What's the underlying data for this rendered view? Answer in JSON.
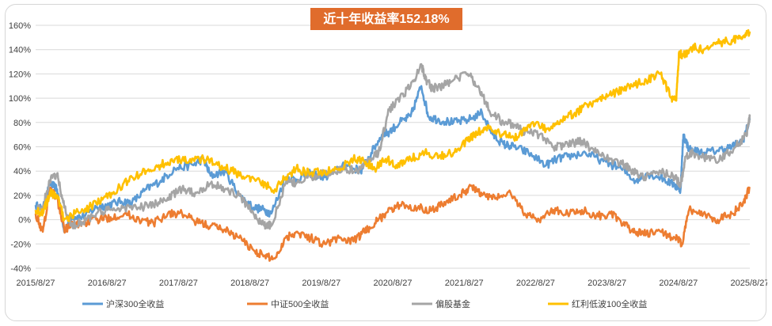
{
  "chart_data": {
    "type": "line",
    "title": "近十年收益率152.18%",
    "title_bg": "#e06c2c",
    "ylim": [
      -40,
      160
    ],
    "y_ticks": [
      -40,
      -20,
      0,
      20,
      40,
      60,
      80,
      100,
      120,
      140,
      160
    ],
    "y_tick_labels": [
      "-40%",
      "-20%",
      "0%",
      "20%",
      "40%",
      "60%",
      "80%",
      "100%",
      "120%",
      "140%",
      "160%"
    ],
    "x_ticks": [
      "2015/8/27",
      "2016/8/27",
      "2017/8/27",
      "2018/8/27",
      "2019/8/27",
      "2020/8/27",
      "2021/8/27",
      "2022/8/27",
      "2023/8/27",
      "2024/8/27",
      "2025/8/27"
    ],
    "xlim": [
      2015.65,
      2025.65
    ],
    "grid": "horizontal",
    "legend_position": "bottom",
    "series": [
      {
        "name": "沪深300全收益",
        "color": "#5b9bd5",
        "x": [
          2015.65,
          2015.75,
          2015.85,
          2015.95,
          2016.05,
          2016.15,
          2016.3,
          2016.5,
          2016.65,
          2016.85,
          2017.0,
          2017.2,
          2017.4,
          2017.6,
          2017.85,
          2018.0,
          2018.1,
          2018.3,
          2018.5,
          2018.7,
          2018.85,
          2018.95,
          2019.15,
          2019.3,
          2019.5,
          2019.7,
          2019.9,
          2020.0,
          2020.2,
          2020.35,
          2020.5,
          2020.6,
          2020.75,
          2020.9,
          2021.05,
          2021.15,
          2021.3,
          2021.5,
          2021.7,
          2021.9,
          2022.05,
          2022.2,
          2022.35,
          2022.55,
          2022.8,
          2022.95,
          2023.1,
          2023.35,
          2023.6,
          2023.85,
          2024.05,
          2024.2,
          2024.4,
          2024.6,
          2024.68,
          2024.72,
          2024.8,
          2025.0,
          2025.2,
          2025.4,
          2025.55,
          2025.65
        ],
        "y": [
          12,
          8,
          30,
          25,
          -10,
          3,
          2,
          10,
          12,
          15,
          14,
          25,
          32,
          42,
          45,
          50,
          36,
          40,
          20,
          10,
          8,
          5,
          35,
          33,
          38,
          35,
          42,
          45,
          40,
          55,
          70,
          72,
          80,
          85,
          110,
          85,
          82,
          80,
          82,
          88,
          70,
          62,
          60,
          55,
          45,
          50,
          52,
          55,
          48,
          42,
          32,
          38,
          35,
          28,
          25,
          70,
          58,
          55,
          57,
          60,
          65,
          82
        ]
      },
      {
        "name": "中证500全收益",
        "color": "#ed7d31",
        "x": [
          2015.65,
          2015.75,
          2015.85,
          2015.95,
          2016.05,
          2016.15,
          2016.3,
          2016.5,
          2016.7,
          2016.9,
          2017.1,
          2017.3,
          2017.5,
          2017.7,
          2017.9,
          2018.1,
          2018.3,
          2018.5,
          2018.7,
          2018.85,
          2019.0,
          2019.15,
          2019.3,
          2019.5,
          2019.7,
          2019.9,
          2020.1,
          2020.25,
          2020.4,
          2020.55,
          2020.75,
          2021.0,
          2021.2,
          2021.4,
          2021.6,
          2021.75,
          2021.9,
          2022.1,
          2022.3,
          2022.5,
          2022.7,
          2022.9,
          2023.1,
          2023.3,
          2023.5,
          2023.7,
          2023.9,
          2024.05,
          2024.2,
          2024.4,
          2024.6,
          2024.7,
          2024.8,
          2025.0,
          2025.2,
          2025.4,
          2025.55,
          2025.65
        ],
        "y": [
          5,
          -10,
          25,
          18,
          -8,
          -5,
          -3,
          0,
          2,
          5,
          0,
          -3,
          5,
          5,
          -2,
          -5,
          -8,
          -15,
          -25,
          -30,
          -32,
          -15,
          -10,
          -15,
          -20,
          -15,
          -18,
          -10,
          -3,
          5,
          12,
          10,
          8,
          15,
          20,
          28,
          20,
          18,
          22,
          5,
          0,
          8,
          5,
          8,
          3,
          5,
          -5,
          -10,
          -12,
          -10,
          -15,
          -20,
          8,
          5,
          0,
          5,
          12,
          27
        ]
      },
      {
        "name": "偏股基金",
        "color": "#a5a5a5",
        "x": [
          2015.65,
          2015.75,
          2015.85,
          2015.95,
          2016.05,
          2016.15,
          2016.3,
          2016.5,
          2016.7,
          2016.9,
          2017.1,
          2017.3,
          2017.5,
          2017.7,
          2017.9,
          2018.1,
          2018.3,
          2018.5,
          2018.7,
          2018.85,
          2018.95,
          2019.15,
          2019.3,
          2019.5,
          2019.7,
          2019.9,
          2020.0,
          2020.15,
          2020.3,
          2020.45,
          2020.6,
          2020.75,
          2020.9,
          2021.05,
          2021.12,
          2021.2,
          2021.35,
          2021.5,
          2021.7,
          2021.85,
          2022.0,
          2022.2,
          2022.35,
          2022.5,
          2022.7,
          2022.9,
          2023.1,
          2023.3,
          2023.5,
          2023.7,
          2023.9,
          2024.05,
          2024.2,
          2024.4,
          2024.6,
          2024.68,
          2024.75,
          2024.85,
          2025.05,
          2025.25,
          2025.45,
          2025.6,
          2025.65
        ],
        "y": [
          8,
          10,
          32,
          38,
          10,
          -5,
          -2,
          5,
          8,
          10,
          10,
          12,
          18,
          25,
          22,
          30,
          25,
          20,
          5,
          -5,
          -5,
          30,
          30,
          35,
          38,
          40,
          42,
          40,
          48,
          55,
          90,
          100,
          110,
          128,
          115,
          108,
          110,
          115,
          120,
          110,
          90,
          80,
          78,
          72,
          70,
          60,
          62,
          65,
          55,
          50,
          45,
          38,
          35,
          40,
          35,
          28,
          52,
          55,
          50,
          50,
          60,
          70,
          85
        ]
      },
      {
        "name": "红利低波100全收益",
        "color": "#ffc000",
        "x": [
          2015.65,
          2015.75,
          2015.85,
          2015.95,
          2016.05,
          2016.2,
          2016.4,
          2016.6,
          2016.8,
          2017.0,
          2017.2,
          2017.4,
          2017.6,
          2017.8,
          2018.0,
          2018.2,
          2018.4,
          2018.6,
          2018.8,
          2019.0,
          2019.15,
          2019.3,
          2019.5,
          2019.7,
          2019.9,
          2020.1,
          2020.25,
          2020.4,
          2020.55,
          2020.7,
          2020.9,
          2021.1,
          2021.3,
          2021.5,
          2021.7,
          2021.85,
          2022.0,
          2022.2,
          2022.4,
          2022.6,
          2022.8,
          2023.0,
          2023.2,
          2023.4,
          2023.6,
          2023.8,
          2024.0,
          2024.2,
          2024.4,
          2024.55,
          2024.62,
          2024.66,
          2024.72,
          2024.85,
          2025.0,
          2025.2,
          2025.4,
          2025.55,
          2025.65
        ],
        "y": [
          8,
          5,
          22,
          20,
          0,
          5,
          10,
          18,
          25,
          35,
          40,
          45,
          50,
          48,
          50,
          45,
          40,
          35,
          30,
          25,
          35,
          42,
          38,
          40,
          42,
          50,
          48,
          42,
          50,
          45,
          50,
          55,
          52,
          55,
          65,
          72,
          75,
          70,
          68,
          80,
          75,
          82,
          88,
          95,
          100,
          105,
          110,
          115,
          120,
          100,
          98,
          138,
          135,
          142,
          140,
          145,
          148,
          150,
          155
        ]
      }
    ]
  }
}
